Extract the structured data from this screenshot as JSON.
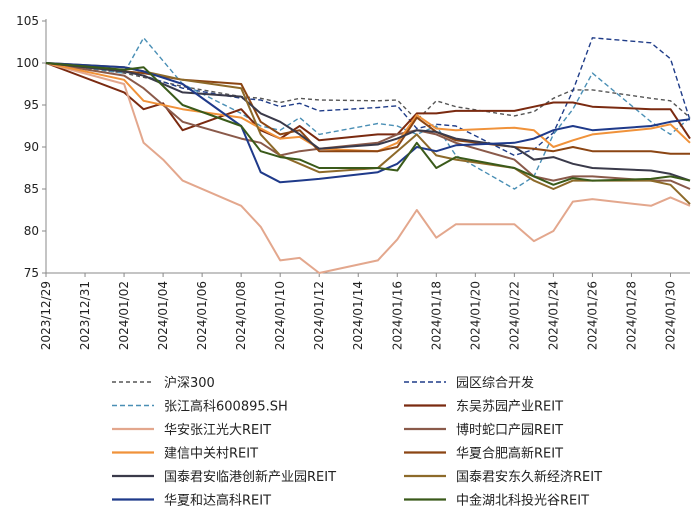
{
  "chart_data": {
    "type": "line",
    "title": "",
    "xlabel": "",
    "ylabel": "",
    "ylim": [
      75,
      105
    ],
    "yticks": [
      75,
      80,
      85,
      90,
      95,
      100,
      105
    ],
    "grid": false,
    "legend_position": "bottom",
    "x_tick_labels": [
      "2023/12/29",
      "2023/12/31",
      "2024/01/02",
      "2024/01/04",
      "2024/01/06",
      "2024/01/08",
      "2024/01/10",
      "2024/01/12",
      "2024/01/14",
      "2024/01/16",
      "2024/01/18",
      "2024/01/20",
      "2024/01/22",
      "2024/01/24",
      "2024/01/26",
      "2024/01/28",
      "2024/01/30"
    ],
    "x_domain": [
      "2023/12/29",
      "2024/01/31"
    ],
    "series": [
      {
        "name": "沪深300",
        "color": "#555555",
        "dash": "4,3",
        "x": [
          "2023/12/29",
          "2024/01/02",
          "2024/01/03",
          "2024/01/05",
          "2024/01/08",
          "2024/01/09",
          "2024/01/10",
          "2024/01/11",
          "2024/01/12",
          "2024/01/15",
          "2024/01/16",
          "2024/01/17",
          "2024/01/18",
          "2024/01/19",
          "2024/01/22",
          "2024/01/23",
          "2024/01/24",
          "2024/01/25",
          "2024/01/26",
          "2024/01/29",
          "2024/01/30",
          "2024/01/31"
        ],
        "y": [
          100,
          98.8,
          98.3,
          97.2,
          96.0,
          95.8,
          95.3,
          95.8,
          95.6,
          95.5,
          95.6,
          93.2,
          95.5,
          94.8,
          93.7,
          94.2,
          95.8,
          96.8,
          96.8,
          95.8,
          95.5,
          93.5
        ]
      },
      {
        "name": "园区综合开发",
        "color": "#1f3c88",
        "dash": "5,3",
        "x": [
          "2023/12/29",
          "2024/01/02",
          "2024/01/03",
          "2024/01/05",
          "2024/01/08",
          "2024/01/09",
          "2024/01/10",
          "2024/01/11",
          "2024/01/12",
          "2024/01/15",
          "2024/01/16",
          "2024/01/17",
          "2024/01/18",
          "2024/01/19",
          "2024/01/22",
          "2024/01/23",
          "2024/01/24",
          "2024/01/25",
          "2024/01/26",
          "2024/01/29",
          "2024/01/30",
          "2024/01/31"
        ],
        "y": [
          100,
          99.0,
          98.5,
          97.0,
          95.8,
          95.6,
          94.8,
          95.2,
          94.3,
          94.7,
          94.9,
          92.2,
          92.7,
          92.5,
          89.0,
          89.7,
          91.7,
          96.7,
          103.0,
          102.4,
          100.5,
          93.2
        ]
      },
      {
        "name": "张江高科600895.SH",
        "color": "#4a8fb5",
        "dash": "5,3",
        "x": [
          "2023/12/29",
          "2024/01/02",
          "2024/01/03",
          "2024/01/05",
          "2024/01/08",
          "2024/01/09",
          "2024/01/10",
          "2024/01/11",
          "2024/01/12",
          "2024/01/15",
          "2024/01/16",
          "2024/01/17",
          "2024/01/18",
          "2024/01/19",
          "2024/01/22",
          "2024/01/23",
          "2024/01/24",
          "2024/01/25",
          "2024/01/26",
          "2024/01/29",
          "2024/01/30",
          "2024/01/31"
        ],
        "y": [
          100,
          98.8,
          103.0,
          97.5,
          94.0,
          92.5,
          92.0,
          93.5,
          91.5,
          92.8,
          92.5,
          91.5,
          92.5,
          89.0,
          85.0,
          86.5,
          91.5,
          94.5,
          98.8,
          93.0,
          91.5,
          93.5
        ]
      },
      {
        "name": "东吴苏园产业REIT",
        "color": "#7a2a10",
        "dash": "",
        "x": [
          "2023/12/29",
          "2024/01/02",
          "2024/01/03",
          "2024/01/04",
          "2024/01/05",
          "2024/01/08",
          "2024/01/09",
          "2024/01/10",
          "2024/01/11",
          "2024/01/12",
          "2024/01/15",
          "2024/01/16",
          "2024/01/17",
          "2024/01/18",
          "2024/01/19",
          "2024/01/22",
          "2024/01/23",
          "2024/01/24",
          "2024/01/25",
          "2024/01/26",
          "2024/01/29",
          "2024/01/30",
          "2024/01/31"
        ],
        "y": [
          100,
          96.5,
          94.5,
          95.2,
          92.0,
          94.5,
          92.0,
          91.0,
          92.5,
          90.8,
          91.5,
          91.5,
          94.0,
          94.0,
          94.3,
          94.3,
          94.8,
          95.3,
          95.3,
          94.8,
          94.5,
          94.5,
          91.0
        ]
      },
      {
        "name": "华安张江光大REIT",
        "color": "#e3a78d",
        "dash": "",
        "x": [
          "2023/12/29",
          "2024/01/02",
          "2024/01/03",
          "2024/01/04",
          "2024/01/05",
          "2024/01/08",
          "2024/01/09",
          "2024/01/10",
          "2024/01/11",
          "2024/01/12",
          "2024/01/15",
          "2024/01/16",
          "2024/01/17",
          "2024/01/18",
          "2024/01/19",
          "2024/01/22",
          "2024/01/23",
          "2024/01/24",
          "2024/01/25",
          "2024/01/26",
          "2024/01/29",
          "2024/01/30",
          "2024/01/31"
        ],
        "y": [
          100,
          97.5,
          90.5,
          88.5,
          86.0,
          83.0,
          80.5,
          76.5,
          76.8,
          75.0,
          76.5,
          79.0,
          82.5,
          79.2,
          80.8,
          80.8,
          78.8,
          80.0,
          83.5,
          83.8,
          83.0,
          84.0,
          83.0
        ]
      },
      {
        "name": "博时蛇口产园REIT",
        "color": "#8a5a4a",
        "dash": "",
        "x": [
          "2023/12/29",
          "2024/01/02",
          "2024/01/03",
          "2024/01/05",
          "2024/01/08",
          "2024/01/09",
          "2024/01/10",
          "2024/01/11",
          "2024/01/12",
          "2024/01/15",
          "2024/01/16",
          "2024/01/17",
          "2024/01/18",
          "2024/01/19",
          "2024/01/22",
          "2024/01/23",
          "2024/01/24",
          "2024/01/25",
          "2024/01/26",
          "2024/01/29",
          "2024/01/30",
          "2024/01/31"
        ],
        "y": [
          100,
          98.5,
          97.0,
          93.0,
          91.0,
          90.5,
          89.0,
          89.5,
          89.8,
          90.5,
          91.5,
          92.0,
          91.5,
          90.5,
          88.5,
          86.5,
          86.0,
          86.5,
          86.5,
          86.0,
          86.0,
          85.0
        ]
      },
      {
        "name": "建信中关村REIT",
        "color": "#f0923a",
        "dash": "",
        "x": [
          "2023/12/29",
          "2024/01/02",
          "2024/01/03",
          "2024/01/05",
          "2024/01/08",
          "2024/01/09",
          "2024/01/10",
          "2024/01/11",
          "2024/01/12",
          "2024/01/15",
          "2024/01/16",
          "2024/01/17",
          "2024/01/18",
          "2024/01/19",
          "2024/01/22",
          "2024/01/23",
          "2024/01/24",
          "2024/01/25",
          "2024/01/26",
          "2024/01/29",
          "2024/01/30",
          "2024/01/31"
        ],
        "y": [
          100,
          98.0,
          95.5,
          94.5,
          93.5,
          92.2,
          91.0,
          91.2,
          89.8,
          89.5,
          90.5,
          93.8,
          92.2,
          92.0,
          92.3,
          92.0,
          90.0,
          90.8,
          91.5,
          92.2,
          92.7,
          90.5
        ]
      },
      {
        "name": "华夏合肥高新REIT",
        "color": "#8b4513",
        "dash": "",
        "x": [
          "2023/12/29",
          "2024/01/02",
          "2024/01/03",
          "2024/01/05",
          "2024/01/08",
          "2024/01/09",
          "2024/01/10",
          "2024/01/11",
          "2024/01/12",
          "2024/01/15",
          "2024/01/16",
          "2024/01/17",
          "2024/01/18",
          "2024/01/19",
          "2024/01/22",
          "2024/01/23",
          "2024/01/24",
          "2024/01/25",
          "2024/01/26",
          "2024/01/29",
          "2024/01/30",
          "2024/01/31"
        ],
        "y": [
          100,
          99.0,
          98.8,
          98.0,
          97.5,
          93.0,
          91.5,
          92.0,
          89.5,
          89.5,
          90.0,
          93.5,
          91.8,
          90.8,
          90.0,
          89.8,
          89.5,
          90.0,
          89.5,
          89.5,
          89.2,
          89.2
        ]
      },
      {
        "name": "国泰君安临港创新产业园REIT",
        "color": "#3a3a4a",
        "dash": "",
        "x": [
          "2023/12/29",
          "2024/01/02",
          "2024/01/03",
          "2024/01/05",
          "2024/01/08",
          "2024/01/09",
          "2024/01/10",
          "2024/01/11",
          "2024/01/12",
          "2024/01/15",
          "2024/01/16",
          "2024/01/17",
          "2024/01/18",
          "2024/01/19",
          "2024/01/22",
          "2024/01/23",
          "2024/01/24",
          "2024/01/25",
          "2024/01/26",
          "2024/01/29",
          "2024/01/30",
          "2024/01/31"
        ],
        "y": [
          100,
          99.0,
          98.5,
          96.5,
          96.0,
          94.0,
          93.0,
          91.5,
          89.8,
          90.3,
          91.0,
          92.0,
          91.8,
          91.0,
          90.0,
          88.5,
          88.8,
          88.0,
          87.5,
          87.2,
          86.8,
          86.0
        ]
      },
      {
        "name": "国泰君安东久新经济REIT",
        "color": "#8d6a2a",
        "dash": "",
        "x": [
          "2023/12/29",
          "2024/01/02",
          "2024/01/03",
          "2024/01/05",
          "2024/01/08",
          "2024/01/09",
          "2024/01/10",
          "2024/01/11",
          "2024/01/12",
          "2024/01/15",
          "2024/01/16",
          "2024/01/17",
          "2024/01/18",
          "2024/01/19",
          "2024/01/22",
          "2024/01/23",
          "2024/01/24",
          "2024/01/25",
          "2024/01/26",
          "2024/01/29",
          "2024/01/30",
          "2024/01/31"
        ],
        "y": [
          100,
          99.5,
          99.0,
          98.0,
          97.0,
          91.5,
          89.0,
          88.0,
          87.0,
          87.5,
          89.5,
          91.5,
          89.0,
          88.5,
          87.5,
          86.0,
          85.0,
          86.0,
          86.0,
          86.0,
          85.5,
          83.2
        ]
      },
      {
        "name": "华夏和达高科REIT",
        "color": "#1f3a8a",
        "dash": "",
        "x": [
          "2023/12/29",
          "2024/01/02",
          "2024/01/03",
          "2024/01/05",
          "2024/01/08",
          "2024/01/09",
          "2024/01/10",
          "2024/01/11",
          "2024/01/12",
          "2024/01/15",
          "2024/01/16",
          "2024/01/17",
          "2024/01/18",
          "2024/01/19",
          "2024/01/22",
          "2024/01/23",
          "2024/01/24",
          "2024/01/25",
          "2024/01/26",
          "2024/01/29",
          "2024/01/30",
          "2024/01/31"
        ],
        "y": [
          100,
          99.5,
          99.0,
          97.5,
          92.5,
          87.0,
          85.8,
          86.0,
          86.2,
          87.0,
          88.0,
          90.0,
          89.5,
          90.2,
          90.5,
          91.0,
          92.0,
          92.5,
          92.0,
          92.5,
          93.0,
          93.3
        ]
      },
      {
        "name": "中金湖北科投光谷REIT",
        "color": "#3a5a1a",
        "dash": "",
        "x": [
          "2023/12/29",
          "2024/01/02",
          "2024/01/03",
          "2024/01/05",
          "2024/01/08",
          "2024/01/09",
          "2024/01/10",
          "2024/01/11",
          "2024/01/12",
          "2024/01/15",
          "2024/01/16",
          "2024/01/17",
          "2024/01/18",
          "2024/01/19",
          "2024/01/22",
          "2024/01/23",
          "2024/01/24",
          "2024/01/25",
          "2024/01/26",
          "2024/01/29",
          "2024/01/30",
          "2024/01/31"
        ],
        "y": [
          100,
          99.2,
          99.5,
          95.0,
          92.5,
          89.5,
          88.8,
          88.5,
          87.5,
          87.5,
          87.2,
          90.5,
          87.5,
          88.8,
          87.5,
          86.5,
          85.5,
          86.3,
          86.0,
          86.2,
          86.5,
          86.0
        ]
      }
    ]
  }
}
